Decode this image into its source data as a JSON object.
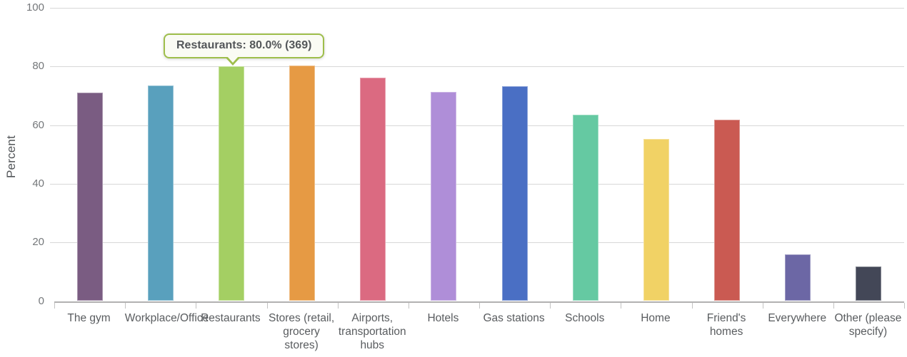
{
  "chart_data": {
    "type": "bar",
    "title": "",
    "xlabel": "",
    "ylabel": "Percent",
    "ylim": [
      0,
      100
    ],
    "yticks": [
      0,
      20,
      40,
      60,
      80,
      100
    ],
    "grid": true,
    "legend": false,
    "categories": [
      "The gym",
      "Workplace/Office",
      "Restaurants",
      "Stores (retail, grocery stores)",
      "Airports, transportation hubs",
      "Hotels",
      "Gas stations",
      "Schools",
      "Home",
      "Friend's homes",
      "Everywhere",
      "Other (please specify)"
    ],
    "values": [
      71.0,
      73.6,
      80.0,
      80.4,
      76.2,
      71.4,
      73.2,
      63.6,
      55.4,
      61.8,
      16.0,
      11.9
    ],
    "bar_colors": [
      "#7a5c82",
      "#59a0bd",
      "#a4cf63",
      "#e69a44",
      "#db6a81",
      "#af8ed8",
      "#4a6fc4",
      "#65c9a2",
      "#f1d265",
      "#ca5a52",
      "#6c67a5",
      "#434757"
    ]
  },
  "tooltip": {
    "text": "Restaurants: 80.0% (369)",
    "category": "Restaurants",
    "percent": "80.0%",
    "count": "369",
    "border_color": "#9ebe4b",
    "background": "#fafbf4",
    "text_color": "#54575a"
  },
  "axis_colors": {
    "gridline": "#d7d7d7",
    "baseline": "#b2b1b1",
    "tick_label": "#74777a",
    "category_label": "#595c5f"
  }
}
